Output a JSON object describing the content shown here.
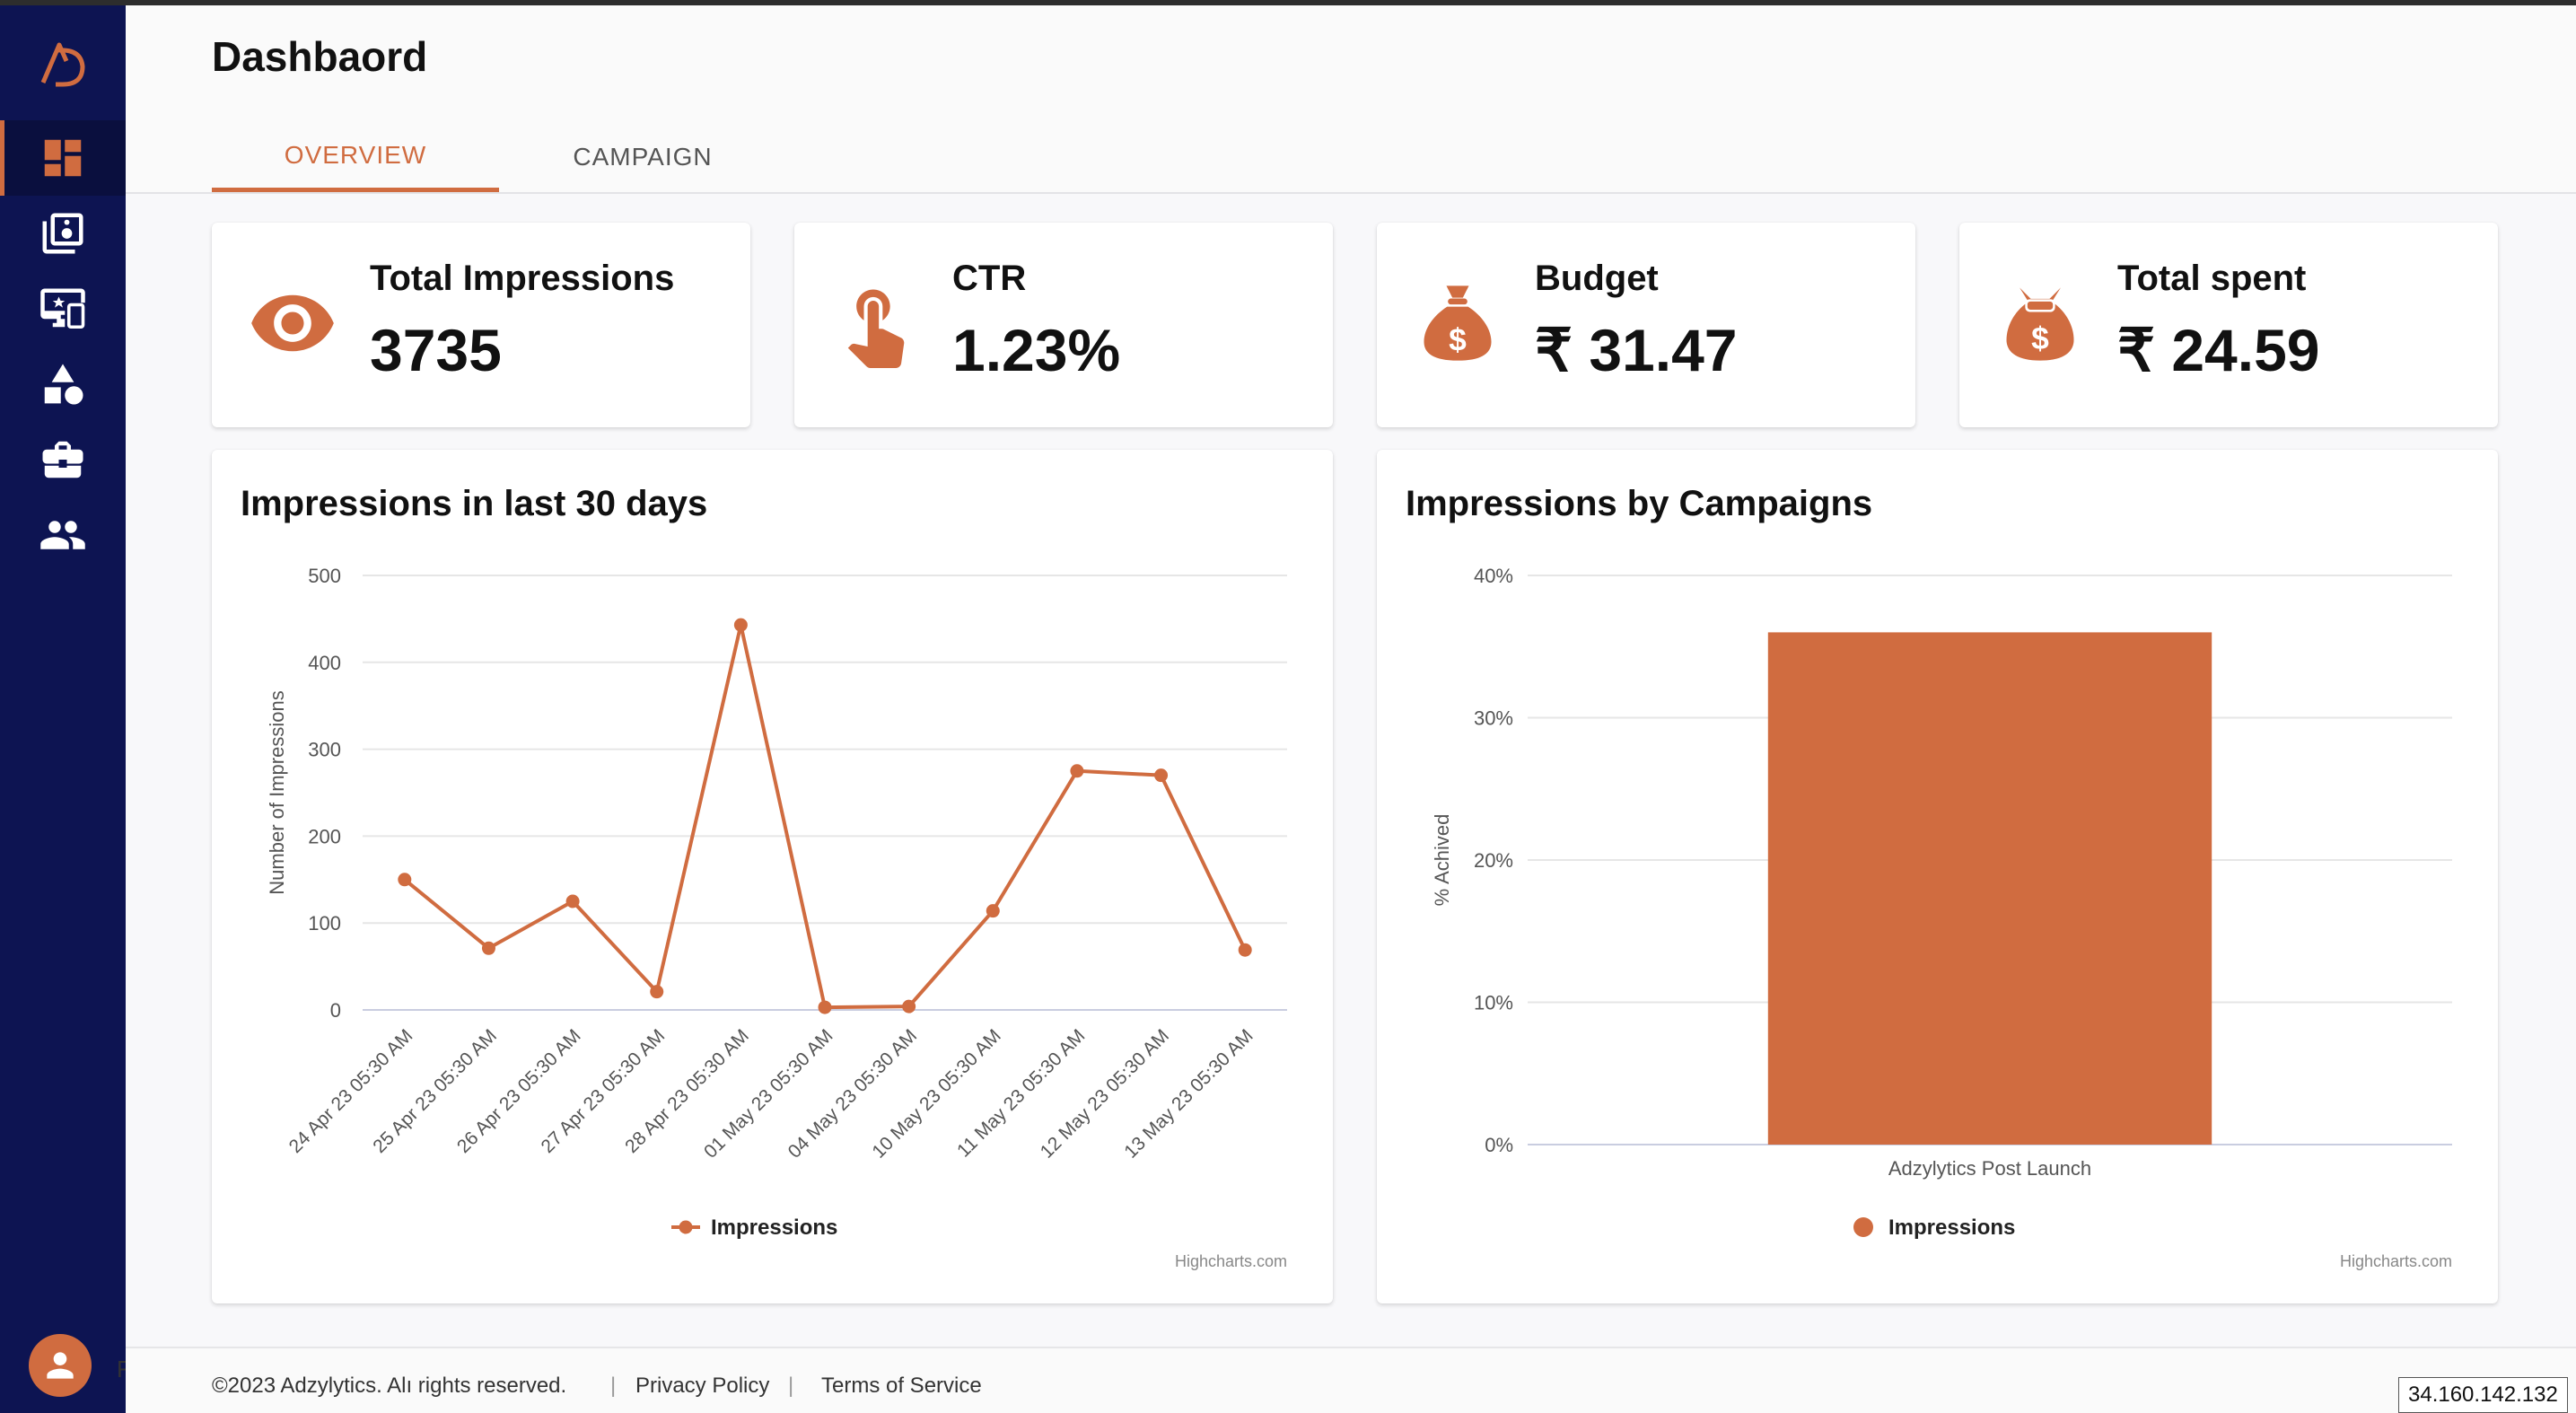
{
  "app": {
    "accent": "#d06c40",
    "sidebar_bg": "#0d1452"
  },
  "sidebar": {
    "items": [
      {
        "name": "dashboard",
        "icon": "dashboard-icon",
        "active": true
      },
      {
        "name": "media",
        "icon": "speaker-library-icon",
        "active": false
      },
      {
        "name": "screens",
        "icon": "monitor-star-icon",
        "active": false
      },
      {
        "name": "categories",
        "icon": "shapes-icon",
        "active": false
      },
      {
        "name": "campaigns",
        "icon": "briefcase-icon",
        "active": false
      },
      {
        "name": "users",
        "icon": "people-icon",
        "active": false
      }
    ],
    "avatar_trail": "F"
  },
  "header": {
    "title": "Dashbaord",
    "tabs": [
      {
        "label": "OVERVIEW",
        "active": true
      },
      {
        "label": "CAMPAIGN",
        "active": false
      }
    ]
  },
  "kpis": [
    {
      "label": "Total Impressions",
      "value": "3735",
      "icon": "eye-icon"
    },
    {
      "label": "CTR",
      "value": "1.23%",
      "icon": "tap-icon"
    },
    {
      "label": "Budget",
      "value": "₹ 31.47",
      "icon": "money-bag-icon"
    },
    {
      "label": "Total spent",
      "value": "₹ 24.59",
      "icon": "money-bag-open-icon"
    }
  ],
  "chart_data": [
    {
      "type": "line",
      "title": "Impressions in last 30 days",
      "xlabel": "",
      "ylabel": "Number of Impressions",
      "ylim": [
        0,
        500
      ],
      "yticks": [
        "0",
        "100",
        "200",
        "300",
        "400",
        "500"
      ],
      "categories": [
        "24 Apr 23 05:30 AM",
        "25 Apr 23 05:30 AM",
        "26 Apr 23 05:30 AM",
        "27 Apr 23 05:30 AM",
        "28 Apr 23 05:30 AM",
        "01 May 23 05:30 AM",
        "04 May 23 05:30 AM",
        "10 May 23 05:30 AM",
        "11 May 23 05:30 AM",
        "12 May 23 05:30 AM",
        "13 May 23 05:30 AM"
      ],
      "series": [
        {
          "name": "Impressions",
          "color": "#d06c40",
          "values": [
            150,
            71,
            125,
            21,
            443,
            3,
            4,
            114,
            275,
            270,
            69
          ]
        }
      ],
      "legend": "bottom-center",
      "grid": true,
      "credits": "Highcharts.com"
    },
    {
      "type": "bar",
      "title": "Impressions by Campaigns",
      "xlabel": "",
      "ylabel": "% Achived",
      "ylim": [
        0,
        40
      ],
      "yticks": [
        "0%",
        "10%",
        "20%",
        "30%",
        "40%"
      ],
      "categories": [
        "Adzylytics Post Launch"
      ],
      "series": [
        {
          "name": "Impressions",
          "color": "#d06c40",
          "values": [
            36
          ]
        }
      ],
      "legend": "bottom-center",
      "grid": true,
      "credits": "Highcharts.com"
    }
  ],
  "footer": {
    "copyright": "©2023 Adzylytics. Alı rights reserved.",
    "privacy": "Privacy Policy",
    "terms": "Terms of Service",
    "separator": "|"
  },
  "ip_badge": "34.160.142.132"
}
